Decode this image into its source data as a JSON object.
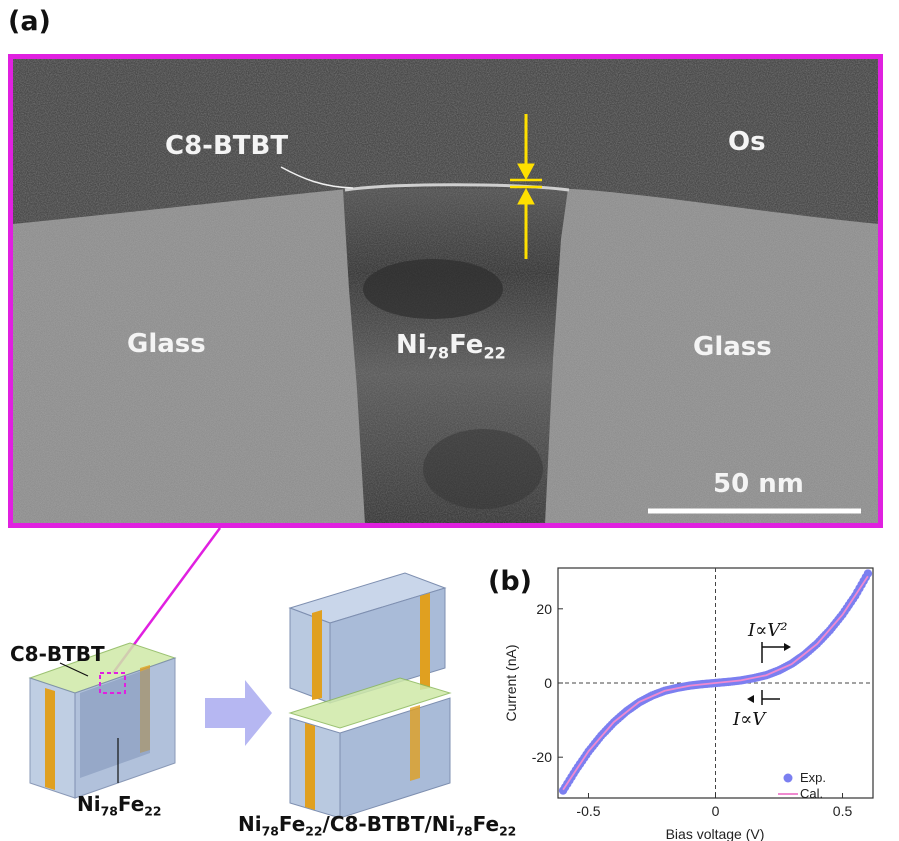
{
  "figure": {
    "panel_a_label": "(a)",
    "panel_b_label": "(b)"
  },
  "tem": {
    "labels": {
      "c8btbt": "C8-BTBT",
      "os": "Os",
      "glass_left": "Glass",
      "glass_right": "Glass",
      "nife_base": "Ni",
      "nife_sub1": "78",
      "nife_mid": "Fe",
      "nife_sub2": "22"
    },
    "scale_bar": "50 nm",
    "colors": {
      "frame": "#e020e0",
      "marker": "#ffe000"
    }
  },
  "schematic": {
    "c8btbt_label": "C8-BTBT",
    "left_label": {
      "base": "Ni",
      "sub1": "78",
      "mid": "Fe",
      "sub2": "22"
    },
    "right_label": {
      "p1": "Ni",
      "s1": "78",
      "p2": "Fe",
      "s2": "22",
      "p3": "/C8-BTBT/Ni",
      "s3": "78",
      "p4": "Fe",
      "s4": "22"
    }
  },
  "chart_data": {
    "type": "scatter",
    "xlabel": "Bias voltage (V)",
    "ylabel": "Current (nA)",
    "xlim": [
      -0.62,
      0.62
    ],
    "ylim": [
      -31,
      31
    ],
    "x_ticks": [
      -0.5,
      0,
      0.5
    ],
    "x_tick_labels": [
      "-0.5",
      "0",
      "0.5"
    ],
    "y_ticks": [
      -20,
      0,
      20
    ],
    "y_tick_labels": [
      "-20",
      "0",
      "20"
    ],
    "grid": false,
    "legend_position": "bottom-right",
    "series": [
      {
        "name": "Exp.",
        "style": "markers",
        "color": "#7b7ff0",
        "x": [
          -0.6,
          -0.55,
          -0.5,
          -0.45,
          -0.4,
          -0.35,
          -0.3,
          -0.25,
          -0.2,
          -0.15,
          -0.1,
          -0.05,
          0.0,
          0.05,
          0.1,
          0.15,
          0.2,
          0.25,
          0.3,
          0.35,
          0.4,
          0.45,
          0.5,
          0.55,
          0.6
        ],
        "y": [
          -29.0,
          -23.5,
          -18.5,
          -14.2,
          -10.6,
          -7.6,
          -5.2,
          -3.4,
          -2.1,
          -1.3,
          -0.7,
          -0.3,
          0.0,
          0.3,
          0.7,
          1.3,
          2.1,
          3.4,
          5.2,
          7.6,
          10.6,
          14.2,
          18.5,
          23.5,
          29.5
        ]
      },
      {
        "name": "Cal.",
        "style": "line",
        "color": "#f08ad0",
        "x": [
          -0.6,
          -0.5,
          -0.4,
          -0.3,
          -0.2,
          -0.1,
          0.0,
          0.1,
          0.2,
          0.3,
          0.4,
          0.5,
          0.6
        ],
        "y": [
          -28.8,
          -18.4,
          -10.5,
          -5.1,
          -2.1,
          -0.7,
          0.0,
          0.7,
          2.1,
          5.1,
          10.5,
          18.4,
          28.8
        ]
      }
    ],
    "annotations": [
      {
        "text": "I∝V²"
      },
      {
        "text": "I∝V"
      }
    ]
  }
}
